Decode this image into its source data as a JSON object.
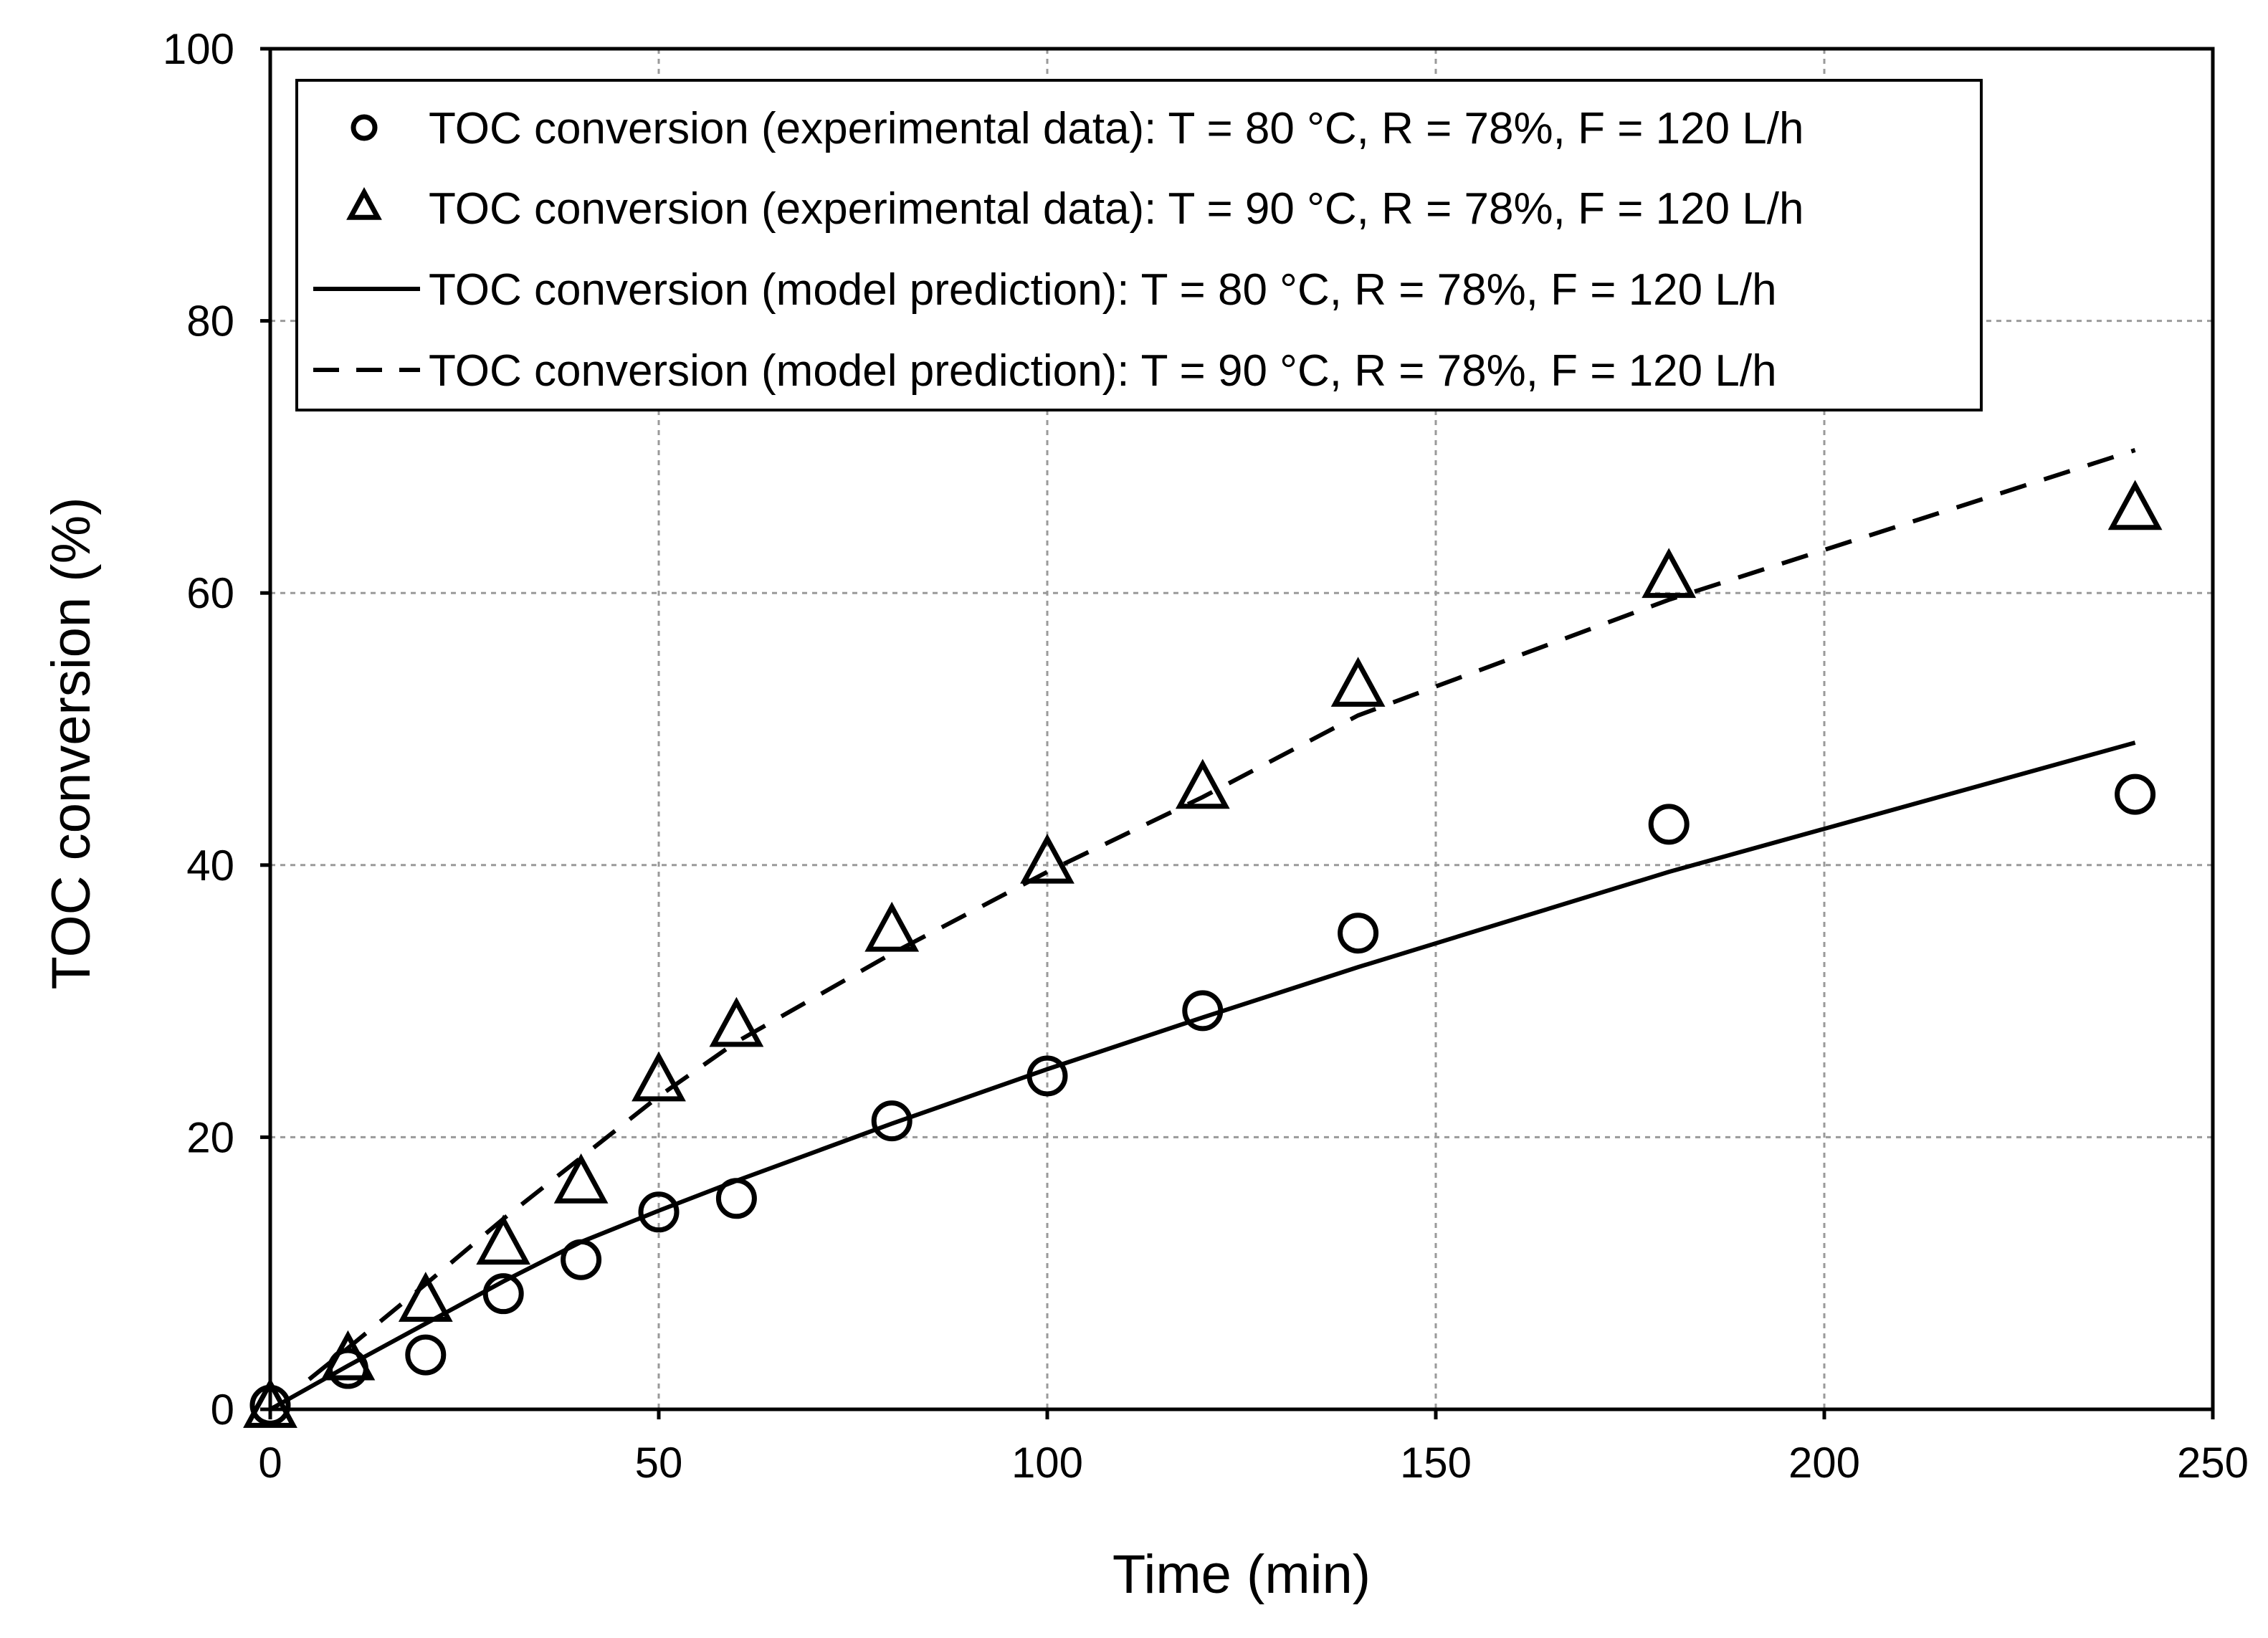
{
  "chart_data": {
    "type": "scatter",
    "title": "",
    "xlabel": "Time (min)",
    "ylabel": "TOC conversion (%)",
    "xlim": [
      0,
      250
    ],
    "ylim": [
      0,
      100
    ],
    "xticks": [
      0,
      50,
      100,
      150,
      200,
      250
    ],
    "yticks": [
      0,
      20,
      40,
      60,
      80,
      100
    ],
    "x_tick_labels": [
      "0",
      "50",
      "100",
      "150",
      "200",
      "250"
    ],
    "y_tick_labels": [
      "0",
      "20",
      "40",
      "60",
      "80",
      "100"
    ],
    "grid": true,
    "legend_position": "top-left",
    "series": [
      {
        "name": "TOC conversion (experimental data): T = 80 °C, R = 78%, F = 120 L/h",
        "kind": "marker",
        "marker": "circle",
        "x": [
          0,
          10,
          20,
          30,
          40,
          50,
          60,
          80,
          100,
          120,
          140,
          180,
          240
        ],
        "y": [
          0.3,
          3,
          4,
          8.5,
          11,
          14.5,
          15.5,
          21.2,
          24.5,
          29.3,
          35,
          43,
          45.2
        ]
      },
      {
        "name": "TOC conversion (experimental data): T = 90 °C, R = 78%, F = 120 L/h",
        "kind": "marker",
        "marker": "triangle",
        "x": [
          0,
          10,
          20,
          30,
          40,
          50,
          60,
          80,
          100,
          120,
          140,
          180,
          240
        ],
        "y": [
          0,
          3.5,
          7.8,
          12,
          16.5,
          24,
          28,
          35,
          40,
          45.5,
          53,
          61,
          66
        ]
      },
      {
        "name": "TOC conversion (model prediction): T = 80 °C, R = 78%, F = 120 L/h",
        "kind": "line",
        "dash": "solid",
        "x": [
          0,
          10,
          20,
          30,
          40,
          50,
          60,
          80,
          100,
          120,
          140,
          180,
          240
        ],
        "y": [
          0,
          3.2,
          6.3,
          9.4,
          12.3,
          14.6,
          16.8,
          21,
          25,
          28.8,
          32.5,
          39.5,
          49
        ]
      },
      {
        "name": "TOC conversion (model prediction): T = 90 °C, R = 78%, F = 120 L/h",
        "kind": "line",
        "dash": "dashed",
        "x": [
          5,
          10,
          20,
          30,
          40,
          50,
          60,
          80,
          100,
          120,
          140,
          180,
          240
        ],
        "y": [
          2.2,
          4.5,
          9.2,
          14,
          18.5,
          23,
          27,
          33.5,
          39.5,
          45,
          51,
          59.5,
          70.5
        ]
      }
    ]
  }
}
